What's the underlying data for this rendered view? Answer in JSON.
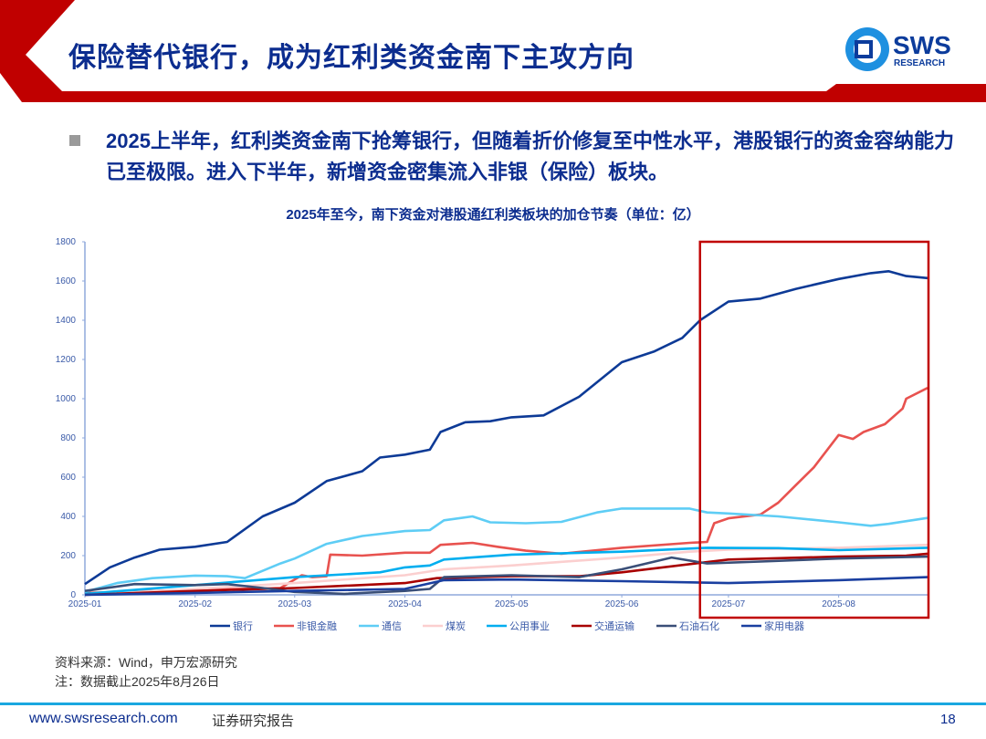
{
  "header": {
    "title": "保险替代银行，成为红利类资金南下主攻方向",
    "logo_text": "SWS",
    "logo_sub": "RESEARCH"
  },
  "bullet": {
    "text": "2025上半年，红利类资金南下抢筹银行，但随着折价修复至中性水平，港股银行的资金容纳能力已至极限。进入下半年，新增资金密集流入非银（保险）板块。"
  },
  "chart_data": {
    "type": "line",
    "title": "2025年至今，南下资金对港股通红利类板块的加仓节奏（单位：亿）",
    "xlabel": "",
    "ylabel": "",
    "ylim": [
      0,
      1800
    ],
    "yticks": [
      0,
      200,
      400,
      600,
      800,
      1000,
      1200,
      1400,
      1600,
      1800
    ],
    "xticks": [
      "2025-01",
      "2025-02",
      "2025-03",
      "2025-04",
      "2025-05",
      "2025-06",
      "2025-07",
      "2025-08"
    ],
    "xlim": [
      "2025-01-01",
      "2025-08-26"
    ],
    "grid": false,
    "legend": "bottom",
    "highlight_box": [
      "2025-06-23",
      "2025-08-26"
    ],
    "highlight_color": "#c00000",
    "series": [
      {
        "name": "银行",
        "color": "#0d3a96",
        "points": [
          [
            "2025-01-01",
            55
          ],
          [
            "2025-01-08",
            140
          ],
          [
            "2025-01-15",
            190
          ],
          [
            "2025-01-22",
            230
          ],
          [
            "2025-02-01",
            245
          ],
          [
            "2025-02-10",
            270
          ],
          [
            "2025-02-20",
            400
          ],
          [
            "2025-03-01",
            470
          ],
          [
            "2025-03-10",
            580
          ],
          [
            "2025-03-20",
            630
          ],
          [
            "2025-03-25",
            700
          ],
          [
            "2025-04-01",
            715
          ],
          [
            "2025-04-08",
            740
          ],
          [
            "2025-04-11",
            830
          ],
          [
            "2025-04-18",
            880
          ],
          [
            "2025-04-25",
            885
          ],
          [
            "2025-05-01",
            905
          ],
          [
            "2025-05-10",
            915
          ],
          [
            "2025-05-20",
            1010
          ],
          [
            "2025-06-01",
            1186
          ],
          [
            "2025-06-10",
            1240
          ],
          [
            "2025-06-18",
            1310
          ],
          [
            "2025-06-23",
            1400
          ],
          [
            "2025-07-01",
            1495
          ],
          [
            "2025-07-10",
            1510
          ],
          [
            "2025-07-20",
            1560
          ],
          [
            "2025-08-01",
            1610
          ],
          [
            "2025-08-10",
            1640
          ],
          [
            "2025-08-15",
            1650
          ],
          [
            "2025-08-20",
            1625
          ],
          [
            "2025-08-26",
            1615
          ]
        ]
      },
      {
        "name": "非银金融",
        "color": "#e8524f",
        "points": [
          [
            "2025-01-01",
            10
          ],
          [
            "2025-02-01",
            25
          ],
          [
            "2025-02-25",
            35
          ],
          [
            "2025-03-03",
            100
          ],
          [
            "2025-03-06",
            90
          ],
          [
            "2025-03-10",
            95
          ],
          [
            "2025-03-11",
            205
          ],
          [
            "2025-03-20",
            200
          ],
          [
            "2025-04-01",
            215
          ],
          [
            "2025-04-08",
            215
          ],
          [
            "2025-04-11",
            255
          ],
          [
            "2025-04-20",
            265
          ],
          [
            "2025-04-27",
            245
          ],
          [
            "2025-05-05",
            225
          ],
          [
            "2025-05-15",
            210
          ],
          [
            "2025-06-01",
            240
          ],
          [
            "2025-06-20",
            265
          ],
          [
            "2025-06-25",
            270
          ],
          [
            "2025-06-27",
            365
          ],
          [
            "2025-07-01",
            390
          ],
          [
            "2025-07-10",
            410
          ],
          [
            "2025-07-15",
            470
          ],
          [
            "2025-07-20",
            560
          ],
          [
            "2025-07-25",
            650
          ],
          [
            "2025-08-01",
            815
          ],
          [
            "2025-08-05",
            795
          ],
          [
            "2025-08-08",
            830
          ],
          [
            "2025-08-14",
            870
          ],
          [
            "2025-08-19",
            950
          ],
          [
            "2025-08-20",
            1000
          ],
          [
            "2025-08-26",
            1055
          ]
        ]
      },
      {
        "name": "通信",
        "color": "#5ecdf5",
        "points": [
          [
            "2025-01-01",
            15
          ],
          [
            "2025-01-10",
            60
          ],
          [
            "2025-01-20",
            85
          ],
          [
            "2025-02-01",
            98
          ],
          [
            "2025-02-10",
            95
          ],
          [
            "2025-02-15",
            85
          ],
          [
            "2025-02-25",
            160
          ],
          [
            "2025-03-01",
            185
          ],
          [
            "2025-03-10",
            260
          ],
          [
            "2025-03-20",
            300
          ],
          [
            "2025-04-01",
            325
          ],
          [
            "2025-04-08",
            330
          ],
          [
            "2025-04-12",
            380
          ],
          [
            "2025-04-20",
            400
          ],
          [
            "2025-04-25",
            370
          ],
          [
            "2025-05-05",
            365
          ],
          [
            "2025-05-15",
            372
          ],
          [
            "2025-05-25",
            420
          ],
          [
            "2025-06-01",
            440
          ],
          [
            "2025-06-20",
            440
          ],
          [
            "2025-06-25",
            420
          ],
          [
            "2025-07-01",
            415
          ],
          [
            "2025-07-15",
            400
          ],
          [
            "2025-08-01",
            370
          ],
          [
            "2025-08-10",
            352
          ],
          [
            "2025-08-15",
            362
          ],
          [
            "2025-08-26",
            392
          ]
        ]
      },
      {
        "name": "煤炭",
        "color": "#fbcfcf",
        "points": [
          [
            "2025-01-01",
            0
          ],
          [
            "2025-02-01",
            30
          ],
          [
            "2025-03-01",
            60
          ],
          [
            "2025-04-01",
            100
          ],
          [
            "2025-04-12",
            130
          ],
          [
            "2025-05-01",
            150
          ],
          [
            "2025-06-01",
            190
          ],
          [
            "2025-06-20",
            220
          ],
          [
            "2025-07-01",
            230
          ],
          [
            "2025-08-01",
            240
          ],
          [
            "2025-08-26",
            255
          ]
        ]
      },
      {
        "name": "公用事业",
        "color": "#00aeef",
        "points": [
          [
            "2025-01-01",
            5
          ],
          [
            "2025-02-01",
            50
          ],
          [
            "2025-03-01",
            90
          ],
          [
            "2025-03-25",
            115
          ],
          [
            "2025-04-01",
            140
          ],
          [
            "2025-04-08",
            150
          ],
          [
            "2025-04-12",
            180
          ],
          [
            "2025-05-01",
            205
          ],
          [
            "2025-06-01",
            220
          ],
          [
            "2025-06-25",
            240
          ],
          [
            "2025-07-15",
            238
          ],
          [
            "2025-08-01",
            228
          ],
          [
            "2025-08-26",
            240
          ]
        ]
      },
      {
        "name": "交通运输",
        "color": "#a80000",
        "points": [
          [
            "2025-01-01",
            0
          ],
          [
            "2025-02-01",
            20
          ],
          [
            "2025-03-01",
            35
          ],
          [
            "2025-04-01",
            60
          ],
          [
            "2025-04-10",
            85
          ],
          [
            "2025-05-01",
            95
          ],
          [
            "2025-05-20",
            95
          ],
          [
            "2025-06-01",
            115
          ],
          [
            "2025-06-24",
            165
          ],
          [
            "2025-07-01",
            180
          ],
          [
            "2025-08-01",
            195
          ],
          [
            "2025-08-20",
            200
          ],
          [
            "2025-08-26",
            210
          ]
        ]
      },
      {
        "name": "石油石化",
        "color": "#3a4f78",
        "points": [
          [
            "2025-01-01",
            20
          ],
          [
            "2025-01-15",
            55
          ],
          [
            "2025-02-01",
            50
          ],
          [
            "2025-02-10",
            55
          ],
          [
            "2025-02-20",
            35
          ],
          [
            "2025-03-01",
            15
          ],
          [
            "2025-03-15",
            5
          ],
          [
            "2025-04-01",
            20
          ],
          [
            "2025-04-08",
            30
          ],
          [
            "2025-04-12",
            90
          ],
          [
            "2025-05-01",
            100
          ],
          [
            "2025-05-20",
            90
          ],
          [
            "2025-06-01",
            130
          ],
          [
            "2025-06-15",
            190
          ],
          [
            "2025-06-25",
            160
          ],
          [
            "2025-07-10",
            170
          ],
          [
            "2025-08-01",
            185
          ],
          [
            "2025-08-26",
            195
          ]
        ]
      },
      {
        "name": "家用电器",
        "color": "#1a3fa0",
        "points": [
          [
            "2025-01-01",
            0
          ],
          [
            "2025-02-01",
            10
          ],
          [
            "2025-03-01",
            20
          ],
          [
            "2025-04-01",
            30
          ],
          [
            "2025-04-12",
            75
          ],
          [
            "2025-05-01",
            78
          ],
          [
            "2025-06-01",
            70
          ],
          [
            "2025-07-01",
            60
          ],
          [
            "2025-08-01",
            75
          ],
          [
            "2025-08-26",
            90
          ]
        ]
      }
    ]
  },
  "source": {
    "line1": "资料来源：Wind，申万宏源研究",
    "line2": "注：数据截止2025年8月26日"
  },
  "footer": {
    "url": "www.swsresearch.com",
    "report": "证券研究报告",
    "page": "18"
  }
}
